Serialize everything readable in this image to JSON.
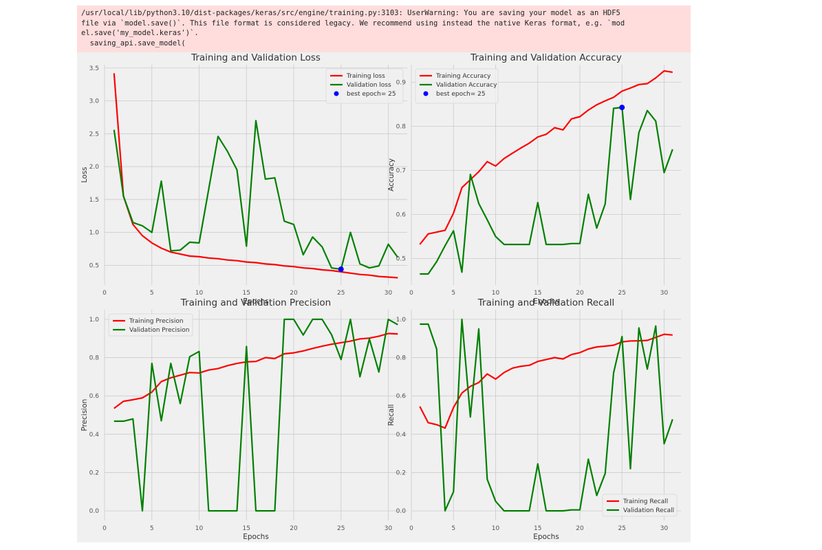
{
  "warning": {
    "lines": [
      "/usr/local/lib/python3.10/dist-packages/keras/src/engine/training.py:3103: UserWarning: You are saving your model as an HDF5",
      "file via `model.save()`. This file format is considered legacy. We recommend using instead the native Keras format, e.g. `mod",
      "el.save('my_model.keras')`.",
      "  saving_api.save_model("
    ]
  },
  "colors": {
    "training": "#ff0000",
    "validation": "#008000",
    "best": "#0000ff",
    "panel_bg": "#f0f0f0",
    "grid": "#cbcbcb",
    "warning_bg": "#ffdddd"
  },
  "chart_data": [
    {
      "type": "line",
      "title": "Training and Validation Loss",
      "xlabel": "Epochs",
      "ylabel": "Loss",
      "xlim": [
        0,
        32
      ],
      "ylim": [
        0.2,
        3.55
      ],
      "xticks": [
        0,
        5,
        10,
        15,
        20,
        25,
        30
      ],
      "yticks": [
        "0.5",
        "1.0",
        "1.5",
        "2.0",
        "2.5",
        "3.0",
        "3.5"
      ],
      "grid": true,
      "legend_position": "top-right",
      "x": [
        1,
        2,
        3,
        4,
        5,
        6,
        7,
        8,
        9,
        10,
        11,
        12,
        13,
        14,
        15,
        16,
        17,
        18,
        19,
        20,
        21,
        22,
        23,
        24,
        25,
        26,
        27,
        28,
        29,
        30,
        31
      ],
      "series": [
        {
          "name": "Training loss",
          "color": "#ff0000",
          "values": [
            3.42,
            1.55,
            1.12,
            0.95,
            0.84,
            0.76,
            0.7,
            0.67,
            0.64,
            0.63,
            0.61,
            0.6,
            0.58,
            0.57,
            0.55,
            0.54,
            0.52,
            0.51,
            0.49,
            0.48,
            0.46,
            0.45,
            0.43,
            0.42,
            0.4,
            0.38,
            0.36,
            0.35,
            0.33,
            0.32,
            0.31
          ]
        },
        {
          "name": "Validation loss",
          "color": "#008000",
          "values": [
            2.56,
            1.55,
            1.15,
            1.1,
            1.0,
            1.78,
            0.72,
            0.73,
            0.85,
            0.84,
            1.65,
            2.46,
            2.23,
            1.95,
            0.79,
            2.7,
            1.81,
            1.83,
            1.17,
            1.12,
            0.66,
            0.93,
            0.78,
            0.46,
            0.44,
            1.0,
            0.52,
            0.46,
            0.49,
            0.82,
            0.62
          ]
        }
      ],
      "best": {
        "label": "best epoch= 25",
        "x": 25,
        "y": 0.44
      }
    },
    {
      "type": "line",
      "title": "Training and Validation Accuracy",
      "xlabel": "Epochs",
      "ylabel": "Accuracy",
      "xlim": [
        0,
        32
      ],
      "ylim": [
        0.44,
        0.94
      ],
      "xticks": [
        0,
        5,
        10,
        15,
        20,
        25,
        30
      ],
      "yticks": [
        "0.5",
        "0.6",
        "0.7",
        "0.8",
        "0.9"
      ],
      "grid": true,
      "legend_position": "top-left",
      "x": [
        1,
        2,
        3,
        4,
        5,
        6,
        7,
        8,
        9,
        10,
        11,
        12,
        13,
        14,
        15,
        16,
        17,
        18,
        19,
        20,
        21,
        22,
        23,
        24,
        25,
        26,
        27,
        28,
        29,
        30,
        31
      ],
      "series": [
        {
          "name": "Training Accuracy",
          "color": "#ff0000",
          "values": [
            0.532,
            0.556,
            0.56,
            0.564,
            0.603,
            0.661,
            0.679,
            0.697,
            0.72,
            0.71,
            0.727,
            0.739,
            0.751,
            0.762,
            0.776,
            0.782,
            0.797,
            0.792,
            0.817,
            0.822,
            0.837,
            0.849,
            0.858,
            0.866,
            0.88,
            0.887,
            0.895,
            0.897,
            0.91,
            0.926,
            0.923
          ]
        },
        {
          "name": "Validation Accuracy",
          "color": "#008000",
          "values": [
            0.465,
            0.465,
            0.493,
            0.529,
            0.563,
            0.469,
            0.691,
            0.625,
            0.588,
            0.55,
            0.532,
            0.532,
            0.532,
            0.532,
            0.627,
            0.532,
            0.532,
            0.532,
            0.534,
            0.534,
            0.646,
            0.569,
            0.624,
            0.841,
            0.843,
            0.634,
            0.786,
            0.836,
            0.812,
            0.695,
            0.748
          ]
        }
      ],
      "best": {
        "label": "best epoch= 25",
        "x": 25,
        "y": 0.843
      }
    },
    {
      "type": "line",
      "title": "Training and Validation Precision",
      "xlabel": "Epochs",
      "ylabel": "Precision",
      "xlim": [
        0,
        32
      ],
      "ylim": [
        -0.05,
        1.05
      ],
      "xticks": [
        0,
        5,
        10,
        15,
        20,
        25,
        30
      ],
      "yticks": [
        "0.0",
        "0.2",
        "0.4",
        "0.6",
        "0.8",
        "1.0"
      ],
      "grid": true,
      "legend_position": "top-left",
      "x": [
        1,
        2,
        3,
        4,
        5,
        6,
        7,
        8,
        9,
        10,
        11,
        12,
        13,
        14,
        15,
        16,
        17,
        18,
        19,
        20,
        21,
        22,
        23,
        24,
        25,
        26,
        27,
        28,
        29,
        30,
        31
      ],
      "series": [
        {
          "name": "Training Precision",
          "color": "#ff0000",
          "values": [
            0.535,
            0.572,
            0.58,
            0.59,
            0.62,
            0.675,
            0.695,
            0.708,
            0.722,
            0.72,
            0.735,
            0.743,
            0.758,
            0.77,
            0.778,
            0.78,
            0.8,
            0.795,
            0.82,
            0.825,
            0.835,
            0.848,
            0.86,
            0.87,
            0.878,
            0.886,
            0.898,
            0.902,
            0.912,
            0.926,
            0.924
          ]
        },
        {
          "name": "Validation Precision",
          "color": "#008000",
          "values": [
            0.468,
            0.468,
            0.48,
            0.0,
            0.77,
            0.47,
            0.77,
            0.56,
            0.805,
            0.832,
            0.0,
            0.0,
            0.0,
            0.0,
            0.858,
            0.0,
            0.0,
            0.0,
            1.0,
            1.0,
            0.918,
            1.0,
            1.0,
            0.92,
            0.79,
            1.0,
            0.7,
            0.898,
            0.725,
            1.0,
            0.972
          ]
        }
      ]
    },
    {
      "type": "line",
      "title": "Training and Validation Recall",
      "xlabel": "Epochs",
      "ylabel": "Recall",
      "xlim": [
        0,
        32
      ],
      "ylim": [
        -0.05,
        1.05
      ],
      "xticks": [
        0,
        5,
        10,
        15,
        20,
        25,
        30
      ],
      "yticks": [
        "0.0",
        "0.2",
        "0.4",
        "0.6",
        "0.8",
        "1.0"
      ],
      "grid": true,
      "legend_position": "bottom-right",
      "x": [
        1,
        2,
        3,
        4,
        5,
        6,
        7,
        8,
        9,
        10,
        11,
        12,
        13,
        14,
        15,
        16,
        17,
        18,
        19,
        20,
        21,
        22,
        23,
        24,
        25,
        26,
        27,
        28,
        29,
        30,
        31
      ],
      "series": [
        {
          "name": "Training Recall",
          "color": "#ff0000",
          "values": [
            0.545,
            0.46,
            0.45,
            0.432,
            0.54,
            0.615,
            0.65,
            0.67,
            0.715,
            0.688,
            0.722,
            0.745,
            0.755,
            0.76,
            0.78,
            0.79,
            0.8,
            0.793,
            0.816,
            0.826,
            0.845,
            0.856,
            0.86,
            0.865,
            0.882,
            0.887,
            0.888,
            0.89,
            0.906,
            0.922,
            0.918
          ]
        },
        {
          "name": "Validation Recall",
          "color": "#008000",
          "values": [
            0.975,
            0.975,
            0.845,
            0.0,
            0.1,
            1.0,
            0.49,
            0.95,
            0.165,
            0.05,
            0.0,
            0.0,
            0.0,
            0.0,
            0.245,
            0.0,
            0.0,
            0.0,
            0.005,
            0.005,
            0.27,
            0.08,
            0.195,
            0.72,
            0.91,
            0.22,
            0.955,
            0.74,
            0.965,
            0.35,
            0.478
          ]
        }
      ]
    }
  ]
}
